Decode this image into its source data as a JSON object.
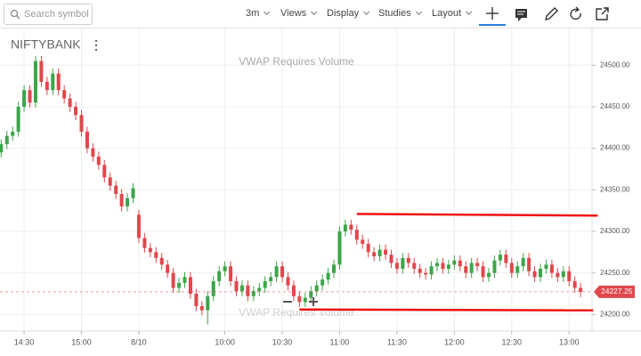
{
  "toolbar": {
    "search_placeholder": "Search symbol",
    "interval": "3m",
    "menus": [
      "Views",
      "Display",
      "Studies",
      "Layout"
    ]
  },
  "chart_data": {
    "type": "candlestick",
    "symbol": "NIFTYBANK",
    "watermark": "VWAP Requires Volume",
    "open": [
      24395,
      24405,
      24415,
      24420,
      24450,
      24470,
      24455,
      24505,
      24480,
      24470,
      24490,
      24470,
      24460,
      24450,
      24440,
      24420,
      24400,
      24390,
      24380,
      24365,
      24355,
      24345,
      24330,
      24340,
      24320,
      24292,
      24280,
      24275,
      24268,
      24260,
      24250,
      24232,
      24238,
      24245,
      24225,
      24210,
      24205,
      24222,
      24240,
      24252,
      24258,
      24240,
      24228,
      24235,
      24222,
      24228,
      24232,
      24240,
      24245,
      24258,
      24245,
      24235,
      24222,
      24215,
      24220,
      24228,
      24235,
      24242,
      24250,
      24260,
      24300,
      24308,
      24302,
      24290,
      24285,
      24275,
      24270,
      24278,
      24272,
      24262,
      24255,
      24268,
      24262,
      24255,
      24250,
      24248,
      24258,
      24262,
      24255,
      24260,
      24265,
      24258,
      24250,
      24262,
      24258,
      24245,
      24250,
      24265,
      24272,
      24262,
      24250,
      24258,
      24268,
      24252,
      24245,
      24255,
      24260,
      24250,
      24245,
      24252,
      24240,
      24232
    ],
    "high": [
      24411,
      24421,
      24426,
      24456,
      24476,
      24476,
      24511,
      24511,
      24486,
      24496,
      24496,
      24476,
      24466,
      24456,
      24446,
      24426,
      24406,
      24396,
      24386,
      24371,
      24361,
      24351,
      24346,
      24358,
      24326,
      24298,
      24286,
      24281,
      24274,
      24266,
      24256,
      24244,
      24251,
      24251,
      24231,
      24216,
      24228,
      24246,
      24258,
      24264,
      24264,
      24246,
      24241,
      24241,
      24234,
      24238,
      24246,
      24251,
      24264,
      24264,
      24251,
      24241,
      24228,
      24226,
      24234,
      24241,
      24248,
      24256,
      24266,
      24306,
      24314,
      24314,
      24308,
      24296,
      24291,
      24281,
      24284,
      24284,
      24278,
      24268,
      24274,
      24274,
      24268,
      24261,
      24256,
      24264,
      24268,
      24268,
      24266,
      24271,
      24271,
      24264,
      24268,
      24268,
      24264,
      24256,
      24271,
      24278,
      24278,
      24268,
      24264,
      24274,
      24274,
      24258,
      24261,
      24266,
      24266,
      24256,
      24258,
      24258,
      24246,
      24238
    ],
    "low": [
      24389,
      24399,
      24409,
      24414,
      24444,
      24449,
      24449,
      24474,
      24464,
      24464,
      24464,
      24454,
      24444,
      24434,
      24414,
      24394,
      24384,
      24374,
      24359,
      24349,
      24339,
      24324,
      24324,
      24334,
      24286,
      24274,
      24269,
      24262,
      24254,
      24244,
      24226,
      24226,
      24232,
      24219,
      24204,
      24199,
      24188,
      24216,
      24234,
      24246,
      24234,
      24222,
      24222,
      24216,
      24216,
      24222,
      24226,
      24234,
      24239,
      24239,
      24229,
      24216,
      24209,
      24209,
      24214,
      24222,
      24229,
      24236,
      24244,
      24254,
      24294,
      24296,
      24284,
      24279,
      24269,
      24264,
      24264,
      24266,
      24256,
      24249,
      24249,
      24256,
      24249,
      24244,
      24242,
      24242,
      24252,
      24249,
      24249,
      24254,
      24252,
      24244,
      24244,
      24252,
      24239,
      24239,
      24244,
      24259,
      24256,
      24244,
      24244,
      24252,
      24246,
      24239,
      24239,
      24249,
      24244,
      24239,
      24239,
      24234,
      24226,
      24221
    ],
    "close": [
      24405,
      24415,
      24420,
      24450,
      24470,
      24455,
      24505,
      24480,
      24470,
      24490,
      24470,
      24460,
      24450,
      24440,
      24420,
      24400,
      24390,
      24380,
      24365,
      24355,
      24345,
      24330,
      24340,
      24352,
      24292,
      24280,
      24275,
      24268,
      24260,
      24250,
      24232,
      24238,
      24245,
      24225,
      24210,
      24205,
      24222,
      24240,
      24252,
      24258,
      24240,
      24228,
      24235,
      24222,
      24228,
      24232,
      24240,
      24245,
      24258,
      24245,
      24235,
      24222,
      24215,
      24220,
      24228,
      24235,
      24242,
      24250,
      24260,
      24300,
      24308,
      24302,
      24290,
      24285,
      24275,
      24270,
      24278,
      24272,
      24262,
      24255,
      24268,
      24262,
      24255,
      24250,
      24248,
      24258,
      24262,
      24255,
      24260,
      24265,
      24258,
      24250,
      24262,
      24258,
      24245,
      24250,
      24265,
      24272,
      24262,
      24250,
      24258,
      24268,
      24252,
      24245,
      24255,
      24260,
      24250,
      24245,
      24252,
      24240,
      24232,
      24227.25
    ],
    "up_color": "#3ca54a",
    "down_color": "#e0474c",
    "xlim": [
      -0.2,
      103
    ],
    "xticks": [
      {
        "value": 4,
        "label": "14:30"
      },
      {
        "value": 14,
        "label": "15:00"
      },
      {
        "value": 24,
        "label": "8/10"
      },
      {
        "value": 39,
        "label": "10:00"
      },
      {
        "value": 49,
        "label": "10:30"
      },
      {
        "value": 59,
        "label": "11:00"
      },
      {
        "value": 69,
        "label": "11:30"
      },
      {
        "value": 79,
        "label": "12:00"
      },
      {
        "value": 89,
        "label": "12:30"
      },
      {
        "value": 99,
        "label": "13:00"
      }
    ],
    "ylim": [
      24180,
      24541
    ],
    "yticks": [
      {
        "value": 24200,
        "label": "24200.00"
      },
      {
        "value": 24250,
        "label": "24250.00"
      },
      {
        "value": 24300,
        "label": "24300.00"
      },
      {
        "value": 24350,
        "label": "24350.00"
      },
      {
        "value": 24400,
        "label": "24400.00"
      },
      {
        "value": 24450,
        "label": "24450.00"
      },
      {
        "value": 24500,
        "label": "24500.00"
      }
    ],
    "grid": true,
    "last_price": 24227.25,
    "last_price_color": "#e0474c",
    "trendlines": [
      {
        "color": "#ee1111",
        "start": [
          62,
          24321
        ],
        "end": [
          104,
          24319
        ]
      },
      {
        "color": "#ee1111",
        "start": [
          52,
          24206
        ],
        "end": [
          103.2,
          24205
        ]
      }
    ]
  }
}
